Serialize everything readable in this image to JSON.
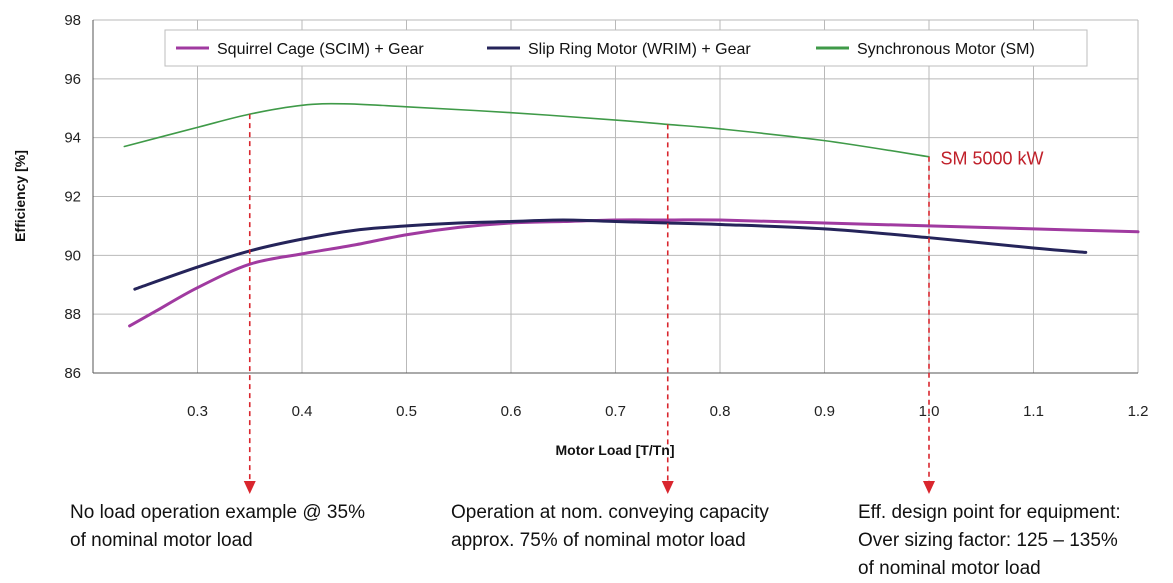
{
  "chart_data": {
    "type": "line",
    "title": "",
    "xlabel": "Motor Load [T/Tn]",
    "ylabel": "Efficiency [%]",
    "xlim": [
      0.2,
      1.2
    ],
    "ylim": [
      86,
      98
    ],
    "xticks": [
      "0.3",
      "0.4",
      "0.5",
      "0.6",
      "0.7",
      "0.8",
      "0.9",
      "1.0",
      "1.1",
      "1.2"
    ],
    "yticks": [
      "86",
      "88",
      "90",
      "92",
      "94",
      "96",
      "98"
    ],
    "grid": true,
    "legend_position": "top",
    "series": [
      {
        "name": "Squirrel Cage (SCIM) + Gear",
        "color": "#a03aa0",
        "x": [
          0.235,
          0.26,
          0.3,
          0.35,
          0.4,
          0.45,
          0.5,
          0.55,
          0.6,
          0.65,
          0.7,
          0.75,
          0.8,
          0.9,
          1.0,
          1.1,
          1.2
        ],
        "y": [
          87.6,
          88.1,
          88.9,
          89.7,
          90.05,
          90.35,
          90.7,
          90.95,
          91.1,
          91.15,
          91.2,
          91.2,
          91.2,
          91.1,
          91.0,
          90.9,
          90.8
        ]
      },
      {
        "name": "Slip Ring Motor (WRIM) + Gear",
        "color": "#25245a",
        "x": [
          0.24,
          0.3,
          0.35,
          0.4,
          0.45,
          0.5,
          0.55,
          0.6,
          0.65,
          0.7,
          0.75,
          0.8,
          0.9,
          1.0,
          1.1,
          1.15
        ],
        "y": [
          88.85,
          89.6,
          90.15,
          90.55,
          90.85,
          91.0,
          91.1,
          91.15,
          91.2,
          91.15,
          91.1,
          91.05,
          90.9,
          90.6,
          90.25,
          90.1
        ]
      },
      {
        "name": "Synchronous Motor (SM)",
        "color": "#3f9a48",
        "x": [
          0.23,
          0.3,
          0.35,
          0.4,
          0.44,
          0.5,
          0.6,
          0.7,
          0.75,
          0.8,
          0.9,
          1.0
        ],
        "y": [
          93.7,
          94.35,
          94.8,
          95.1,
          95.15,
          95.05,
          94.85,
          94.6,
          94.45,
          94.3,
          93.9,
          93.35
        ]
      }
    ],
    "markers": [
      {
        "x": 0.35,
        "y_top": 94.8
      },
      {
        "x": 0.75,
        "y_top": 94.45
      },
      {
        "x": 1.0,
        "y_top": 93.35
      }
    ],
    "annotation": {
      "text": "SM 5000 kW",
      "x": 1.01,
      "y": 93.3
    }
  },
  "notes": [
    {
      "lines": [
        "No load operation example @ 35%",
        "of nominal motor load"
      ]
    },
    {
      "lines": [
        "Operation at nom. conveying capacity",
        "approx. 75% of nominal motor load"
      ]
    },
    {
      "lines": [
        "Eff. design point for equipment:",
        "Over sizing factor: 125 – 135%",
        "of nominal motor load"
      ]
    }
  ],
  "colors": {
    "grid": "#b9b9b9",
    "marker": "#d9262e",
    "axis": "#555555"
  }
}
